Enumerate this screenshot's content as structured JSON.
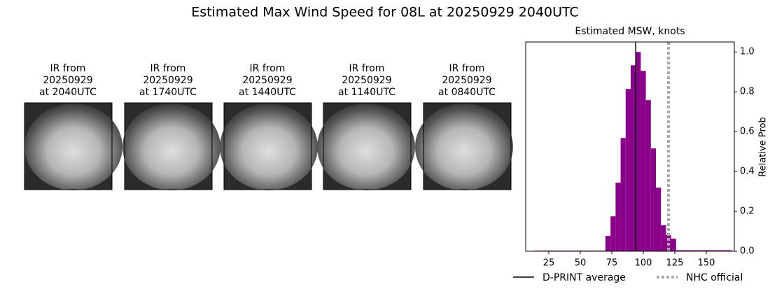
{
  "title": "Estimated Max Wind Speed for 08L at 20250929 2040UTC",
  "panels": [
    {
      "lines": [
        "IR from",
        "20250929",
        "at 2040UTC"
      ]
    },
    {
      "lines": [
        "IR from",
        "20250929",
        "at 1740UTC"
      ]
    },
    {
      "lines": [
        "IR from",
        "20250929",
        "at 1440UTC"
      ]
    },
    {
      "lines": [
        "IR from",
        "20250929",
        "at 1140UTC"
      ]
    },
    {
      "lines": [
        "IR from",
        "20250929",
        "at 0840UTC"
      ]
    }
  ],
  "chart_data": {
    "type": "histogram",
    "title": "Estimated MSW, knots",
    "ylabel": "Relative Prob",
    "bins": [
      14,
      18,
      22,
      26,
      30,
      34,
      38,
      42,
      46,
      50,
      54,
      58,
      62,
      66,
      70,
      74,
      78,
      82,
      86,
      90,
      94,
      98,
      102,
      106,
      110,
      114,
      118,
      122,
      126,
      130,
      134,
      138,
      142,
      146,
      150,
      154,
      158,
      162,
      166,
      170
    ],
    "values": [
      0.003,
      0.003,
      0.003,
      0.003,
      0.003,
      0.003,
      0.003,
      0.003,
      0.003,
      0.003,
      0.003,
      0.003,
      0.003,
      0.003,
      0.077,
      0.175,
      0.344,
      0.568,
      0.814,
      0.933,
      1.0,
      0.905,
      0.758,
      0.516,
      0.319,
      0.13,
      0.081,
      0.063,
      0.005,
      0.005,
      0.005,
      0.005,
      0.005,
      0.005,
      0.005,
      0.005,
      0.005,
      0.005,
      0.005
    ],
    "color": "#8b008b",
    "xlim": [
      6.7,
      172.2
    ],
    "ylim": [
      0,
      1.05
    ],
    "xticks": [
      25,
      50,
      75,
      100,
      125,
      150
    ],
    "yticks": [
      {
        "value": 0,
        "label": "0.0"
      },
      0.2,
      0.4,
      0.6,
      0.8,
      {
        "value": 1,
        "label": "1.0"
      }
    ],
    "reference_lines": [
      {
        "name": "D-PRINT average",
        "value": 94,
        "color": "#000000",
        "dash": "none"
      },
      {
        "name": "NHC official",
        "value": 120,
        "color": "#aaaaaa",
        "dash": "4 3"
      }
    ]
  }
}
